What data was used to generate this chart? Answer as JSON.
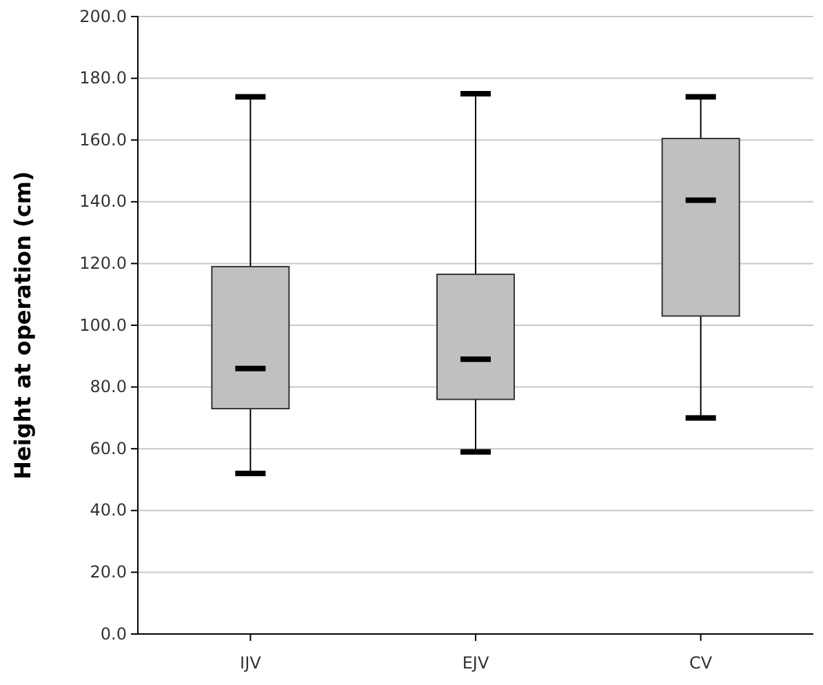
{
  "chart_data": {
    "type": "box",
    "ylabel": "Height at operation (cm)",
    "categories": [
      "IJV",
      "EJV",
      "CV"
    ],
    "boxes": [
      {
        "low": 52,
        "q1": 73,
        "median": 86,
        "q3": 119,
        "high": 174
      },
      {
        "low": 59,
        "q1": 76,
        "median": 89,
        "q3": 116.5,
        "high": 175
      },
      {
        "low": 70,
        "q1": 103,
        "median": 140.5,
        "q3": 160.5,
        "high": 174
      }
    ],
    "color": "#c0c0c0",
    "ylim": [
      0,
      200
    ],
    "yticks": [
      {
        "value": 0,
        "label": "0.0"
      },
      {
        "value": 20,
        "label": "20.0"
      },
      {
        "value": 40,
        "label": "40.0"
      },
      {
        "value": 60,
        "label": "60.0"
      },
      {
        "value": 80,
        "label": "80.0"
      },
      {
        "value": 100,
        "label": "100.0"
      },
      {
        "value": 120,
        "label": "120.0"
      },
      {
        "value": 140,
        "label": "140.0"
      },
      {
        "value": 160,
        "label": "160.0"
      },
      {
        "value": 180,
        "label": "180.0"
      },
      {
        "value": 200,
        "label": "200.0"
      }
    ],
    "grid": "y"
  }
}
